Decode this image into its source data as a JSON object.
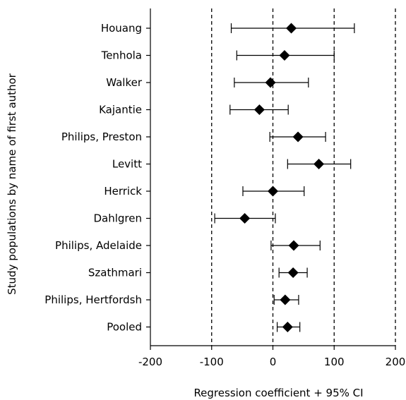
{
  "chart_data": {
    "type": "forest",
    "ylabel": "Study populations by name of first author",
    "xlabel": "Regression coefficient + 95% CI",
    "xlim": [
      -200,
      200
    ],
    "xticks": [
      -200,
      -100,
      0,
      100,
      200
    ],
    "reference_lines": [
      -100,
      0,
      100,
      200
    ],
    "grid": false,
    "studies": [
      {
        "label": "Houang",
        "estimate": 30,
        "ci_low": -68,
        "ci_high": 133
      },
      {
        "label": "Tenhola",
        "estimate": 19,
        "ci_low": -59,
        "ci_high": 100
      },
      {
        "label": "Walker",
        "estimate": -4,
        "ci_low": -63,
        "ci_high": 58
      },
      {
        "label": "Kajantie",
        "estimate": -22,
        "ci_low": -70,
        "ci_high": 25
      },
      {
        "label": "Philips, Preston",
        "estimate": 41,
        "ci_low": -5,
        "ci_high": 86
      },
      {
        "label": "Levitt",
        "estimate": 75,
        "ci_low": 24,
        "ci_high": 127
      },
      {
        "label": "Herrick",
        "estimate": 0,
        "ci_low": -49,
        "ci_high": 51
      },
      {
        "label": "Dahlgren",
        "estimate": -46,
        "ci_low": -95,
        "ci_high": 4
      },
      {
        "label": "Philips, Adelaide",
        "estimate": 34,
        "ci_low": -3,
        "ci_high": 77
      },
      {
        "label": "Szathmari",
        "estimate": 33,
        "ci_low": 10,
        "ci_high": 56
      },
      {
        "label": "Philips, Hertfordsh",
        "estimate": 20,
        "ci_low": 2,
        "ci_high": 42
      },
      {
        "label": "Pooled",
        "estimate": 24,
        "ci_low": 7,
        "ci_high": 44
      }
    ]
  }
}
